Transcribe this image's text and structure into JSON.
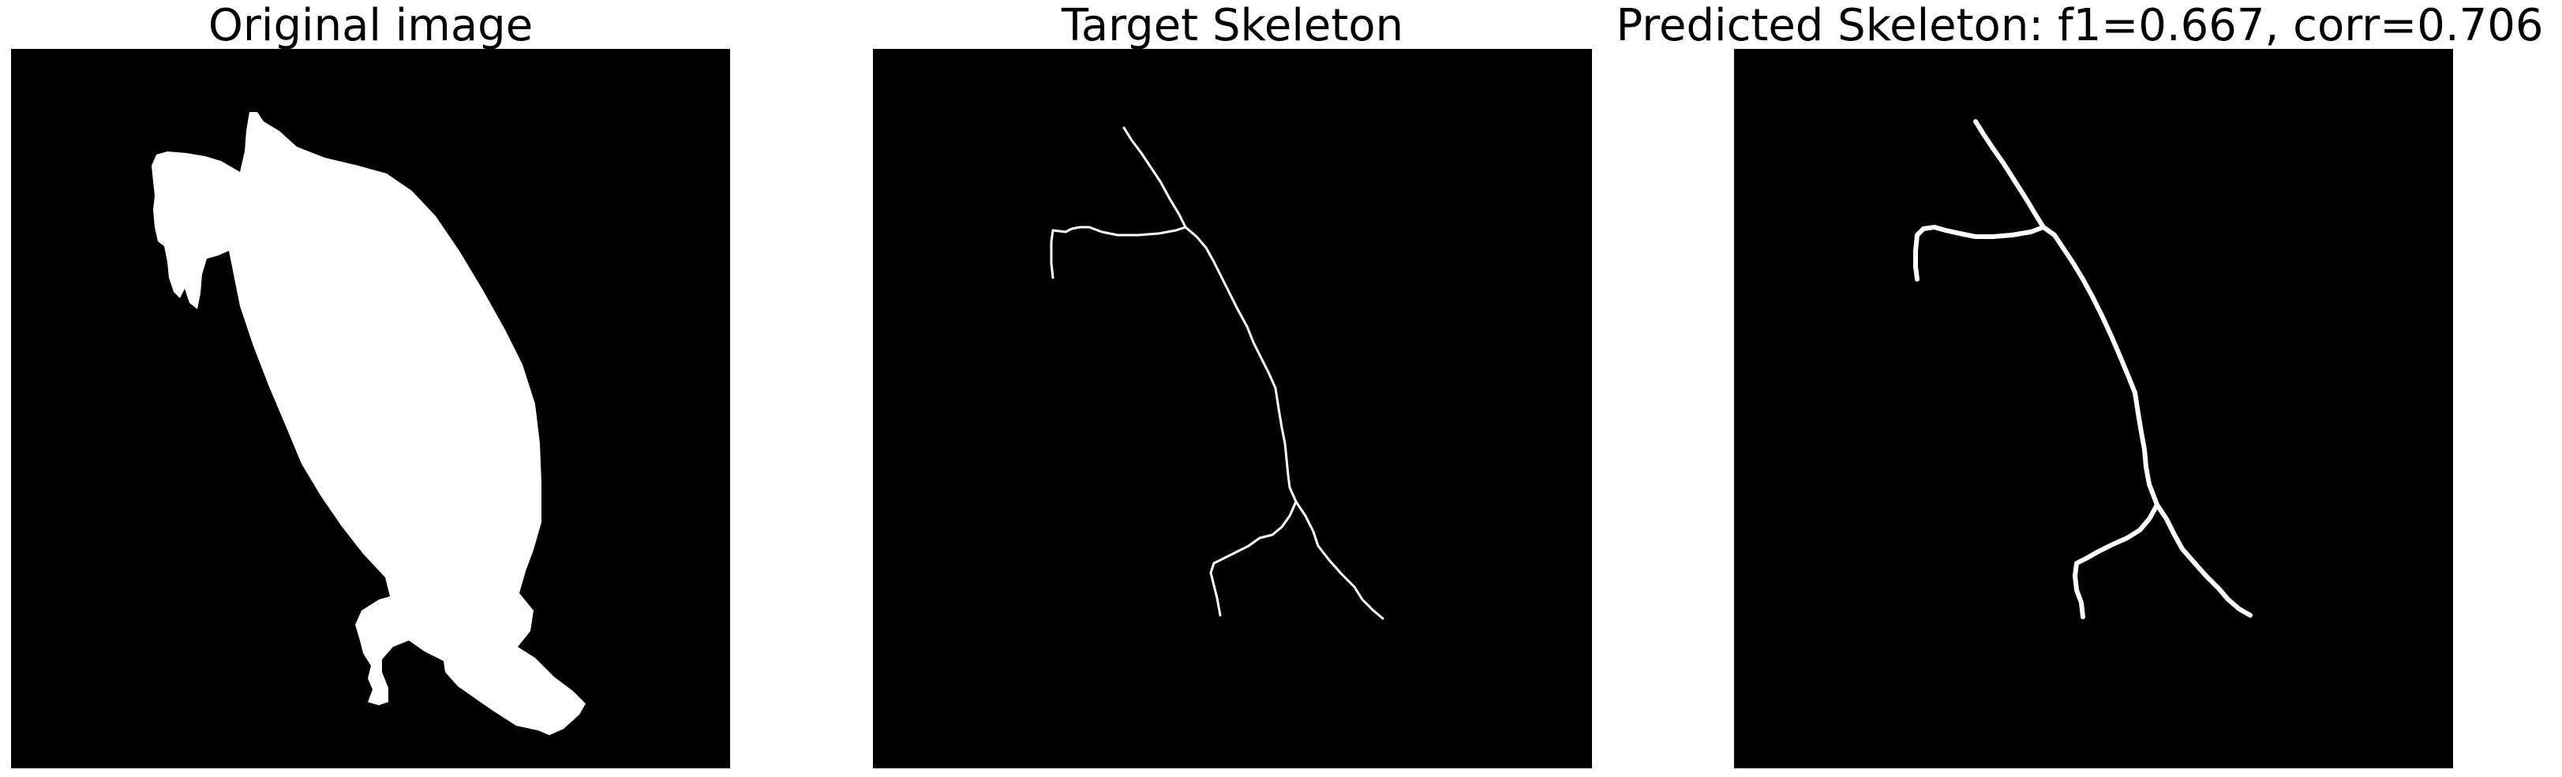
{
  "figure": {
    "panels": [
      {
        "title": "Original image"
      },
      {
        "title": "Target Skeleton"
      },
      {
        "title": "Predicted Skeleton: f1=0.667, corr=0.706"
      }
    ],
    "colors": {
      "background": "#000000",
      "foreground": "#ffffff"
    }
  }
}
